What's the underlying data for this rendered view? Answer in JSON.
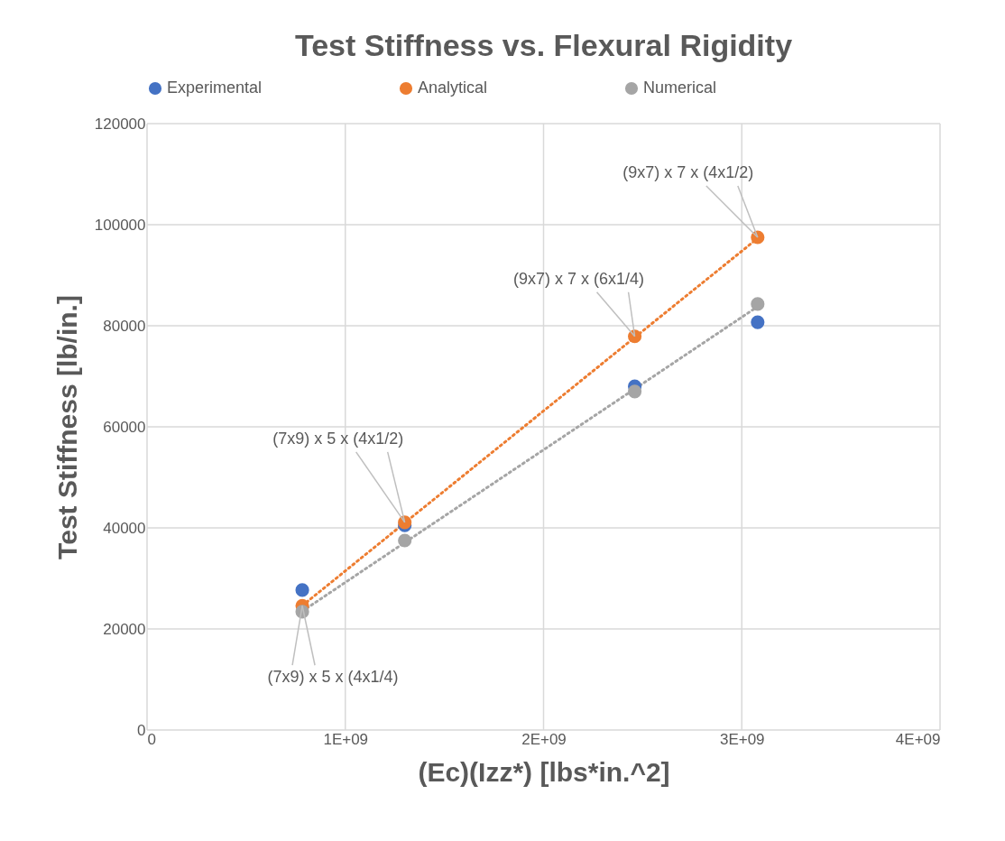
{
  "chart_data": {
    "type": "scatter",
    "title": "Test Stiffness vs. Flexural Rigidity",
    "xlabel": "(Ec)(Izz*) [lbs*in.^2]",
    "ylabel": "Test Stiffness [lb/in.]",
    "x": [
      783000000,
      1300000000,
      2460000000,
      3080000000
    ],
    "series": [
      {
        "name": "Experimental",
        "color": "#4472c4",
        "values": [
          27700,
          40500,
          68000,
          80700
        ]
      },
      {
        "name": "Analytical",
        "color": "#ed7d31",
        "values": [
          24600,
          41100,
          77900,
          97500
        ]
      },
      {
        "name": "Numerical",
        "color": "#a5a5a5",
        "values": [
          23400,
          37500,
          67000,
          84300
        ]
      },
      {
        "type": "line",
        "color": "#ed7d31",
        "line_style": "dotted",
        "marker": "none",
        "values": [
          24600,
          41000,
          77700,
          97300
        ]
      },
      {
        "type": "line",
        "color": "#a5a5a5",
        "line_style": "dotted",
        "marker": "none",
        "values": [
          23500,
          37100,
          67500,
          83800
        ]
      }
    ],
    "annotations": [
      {
        "text": "(7x9) x 5 x (4x1/4)",
        "x": 783000000,
        "y": 24600
      },
      {
        "text": "(7x9) x 5 x (4x1/2)",
        "x": 1300000000,
        "y": 41100
      },
      {
        "text": "(9x7) x 7 x (6x1/4)",
        "x": 2460000000,
        "y": 77900
      },
      {
        "text": "(9x7) x 7 x (4x1/2)",
        "x": 3080000000,
        "y": 97500
      }
    ],
    "xlim": [
      0,
      4000000000
    ],
    "xticks": [
      {
        "value": 0,
        "label": "0"
      },
      {
        "value": 1000000000,
        "label": "1E+09"
      },
      {
        "value": 2000000000,
        "label": "2E+09"
      },
      {
        "value": 3000000000,
        "label": "3E+09"
      },
      {
        "value": 4000000000,
        "label": "4E+09"
      }
    ],
    "ylim": [
      0,
      120000
    ],
    "yticks": [
      0,
      20000,
      40000,
      60000,
      80000,
      100000,
      120000
    ],
    "grid": true,
    "legend": "top",
    "marker": "circle"
  }
}
